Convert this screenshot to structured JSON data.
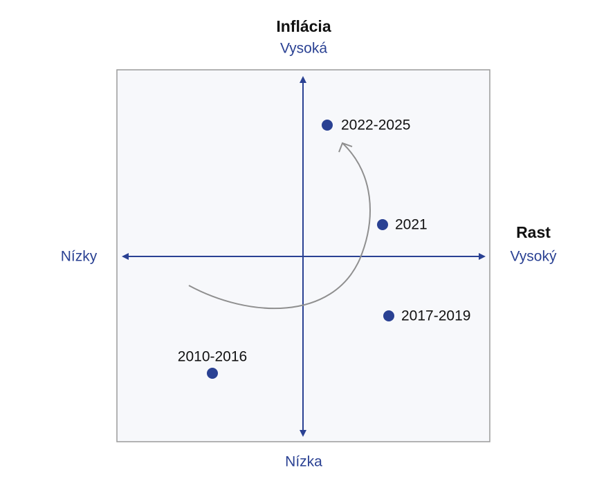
{
  "y_axis": {
    "title": "Inflácia",
    "high": "Vysoká",
    "low": "Nízka"
  },
  "x_axis": {
    "title": "Rast",
    "high": "Vysoký",
    "low": "Nízky"
  },
  "points": [
    {
      "label": "2022-2025"
    },
    {
      "label": "2021"
    },
    {
      "label": "2017-2019"
    },
    {
      "label": "2010-2016"
    }
  ]
}
